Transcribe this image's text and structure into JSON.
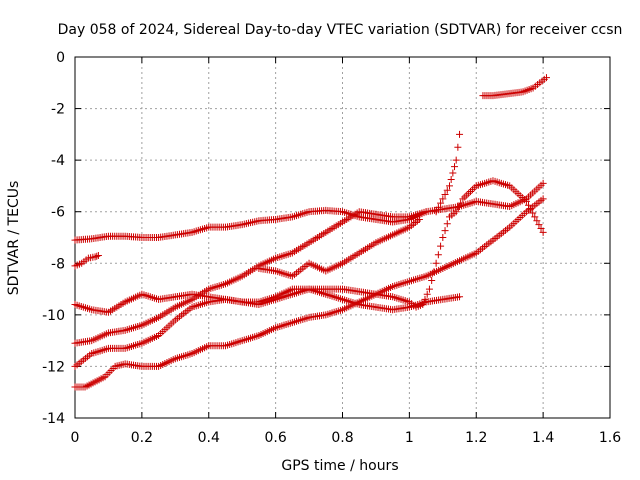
{
  "chart_data": {
    "type": "scatter",
    "title": "Day 058 of 2024, Sidereal Day-to-day VTEC variation (SDTVAR) for receiver ccsn",
    "xlabel": "GPS time / hours",
    "ylabel": "SDTVAR / TECUs",
    "xlim": [
      0,
      1.6
    ],
    "ylim": [
      -14,
      0
    ],
    "xticks": [
      0,
      0.2,
      0.4,
      0.6,
      0.8,
      1,
      1.2,
      1.4,
      1.6
    ],
    "xtick_labels": [
      "0",
      "0.2",
      "0.4",
      "0.6",
      "0.8",
      "1",
      "1.2",
      "1.4",
      "1.6"
    ],
    "yticks": [
      0,
      -2,
      -4,
      -6,
      -8,
      -10,
      -12,
      -14
    ],
    "ytick_labels": [
      "0",
      "-2",
      "-4",
      "-6",
      "-8",
      "-10",
      "-12",
      "-14"
    ],
    "grid": true,
    "marker": "+",
    "marker_color": "#cc0000",
    "series": [
      {
        "name": "s1",
        "x": [
          0,
          0.05,
          0.1,
          0.15,
          0.2,
          0.25,
          0.3,
          0.35,
          0.4,
          0.45,
          0.5,
          0.55,
          0.6,
          0.65,
          0.7,
          0.75,
          0.8,
          0.85,
          0.9,
          0.95,
          1.0,
          1.05
        ],
        "y": [
          -7.1,
          -7.05,
          -6.95,
          -6.95,
          -7.0,
          -7.0,
          -6.9,
          -6.8,
          -6.6,
          -6.6,
          -6.5,
          -6.35,
          -6.3,
          -6.2,
          -6.0,
          -5.95,
          -6.0,
          -6.2,
          -6.3,
          -6.4,
          -6.3,
          -6.0
        ]
      },
      {
        "name": "s2",
        "x": [
          0,
          0.02,
          0.04,
          0.06,
          0.07
        ],
        "y": [
          -8.1,
          -8.0,
          -7.8,
          -7.75,
          -7.7
        ]
      },
      {
        "name": "s3",
        "x": [
          0,
          0.05,
          0.1,
          0.15,
          0.2,
          0.25,
          0.3,
          0.35,
          0.4,
          0.45,
          0.5,
          0.55,
          0.6,
          0.65,
          0.7,
          0.75,
          0.8,
          0.85,
          0.9,
          0.95,
          1.0,
          1.02,
          1.04,
          1.06,
          1.08,
          1.1,
          1.12,
          1.14,
          1.16,
          1.2,
          1.25,
          1.3,
          1.35,
          1.4
        ],
        "y": [
          -9.6,
          -9.8,
          -9.9,
          -9.5,
          -9.2,
          -9.4,
          -9.3,
          -9.2,
          -9.3,
          -9.4,
          -9.5,
          -9.6,
          -9.4,
          -9.2,
          -9.0,
          -9.0,
          -9.0,
          -9.1,
          -9.2,
          -9.3,
          -9.5,
          -9.7,
          -9.6,
          -9.0,
          -8.0,
          -7.0,
          -6.2,
          -6.0,
          -5.5,
          -5.0,
          -4.8,
          -5.0,
          -5.6,
          -6.8
        ]
      },
      {
        "name": "s4",
        "x": [
          0,
          0.05,
          0.1,
          0.15,
          0.2,
          0.25,
          0.3,
          0.35,
          0.4,
          0.45,
          0.5,
          0.55,
          0.6,
          0.65,
          0.7,
          0.75,
          0.8,
          0.85,
          0.9,
          0.95,
          1.0,
          1.05,
          1.1,
          1.15,
          1.2,
          1.25,
          1.3,
          1.35,
          1.4
        ],
        "y": [
          -11.1,
          -11.0,
          -10.7,
          -10.6,
          -10.4,
          -10.1,
          -9.7,
          -9.4,
          -9.0,
          -8.8,
          -8.5,
          -8.1,
          -7.8,
          -7.6,
          -7.2,
          -6.8,
          -6.4,
          -6.0,
          -6.1,
          -6.2,
          -6.2,
          -6.0,
          -5.9,
          -5.8,
          -5.6,
          -5.7,
          -5.8,
          -5.5,
          -4.9
        ]
      },
      {
        "name": "s5",
        "x": [
          0,
          0.05,
          0.1,
          0.15,
          0.2,
          0.25,
          0.3,
          0.35,
          0.4,
          0.45,
          0.5,
          0.55,
          0.6,
          0.65,
          0.7,
          0.75,
          0.8,
          0.85,
          0.9,
          0.95,
          1.0,
          1.05,
          1.1,
          1.15
        ],
        "y": [
          -12.0,
          -11.5,
          -11.3,
          -11.3,
          -11.1,
          -10.8,
          -10.2,
          -9.7,
          -9.5,
          -9.4,
          -9.5,
          -9.5,
          -9.3,
          -9.0,
          -9.0,
          -9.2,
          -9.4,
          -9.6,
          -9.7,
          -9.8,
          -9.7,
          -9.5,
          -9.4,
          -9.3
        ]
      },
      {
        "name": "s6",
        "x": [
          0,
          0.03,
          0.06,
          0.09,
          0.12,
          0.15,
          0.2,
          0.25,
          0.3,
          0.35,
          0.4,
          0.45,
          0.5,
          0.55,
          0.6,
          0.65,
          0.7,
          0.75,
          0.8,
          0.85,
          0.9,
          0.95,
          1.0,
          1.05,
          1.1,
          1.15,
          1.2,
          1.25,
          1.3,
          1.35,
          1.4
        ],
        "y": [
          -12.8,
          -12.8,
          -12.6,
          -12.4,
          -12.0,
          -11.9,
          -12.0,
          -12.0,
          -11.7,
          -11.5,
          -11.2,
          -11.2,
          -11.0,
          -10.8,
          -10.5,
          -10.3,
          -10.1,
          -10.0,
          -9.8,
          -9.5,
          -9.2,
          -8.9,
          -8.7,
          -8.5,
          -8.2,
          -7.9,
          -7.6,
          -7.1,
          -6.6,
          -6.0,
          -5.5
        ]
      },
      {
        "name": "s7",
        "x": [
          0.55,
          0.6,
          0.65,
          0.7,
          0.75,
          0.8,
          0.85,
          0.9,
          0.95,
          1.0,
          1.03
        ],
        "y": [
          -8.2,
          -8.3,
          -8.5,
          -8.0,
          -8.3,
          -8.0,
          -7.6,
          -7.2,
          -6.9,
          -6.6,
          -6.3
        ]
      },
      {
        "name": "s8",
        "x": [
          1.08,
          1.1,
          1.12,
          1.13,
          1.14,
          1.15
        ],
        "y": [
          -6.0,
          -5.5,
          -5.0,
          -4.5,
          -4.0,
          -3.0
        ]
      },
      {
        "name": "s9",
        "x": [
          1.22,
          1.25,
          1.28,
          1.31,
          1.34,
          1.37,
          1.39,
          1.41
        ],
        "y": [
          -1.5,
          -1.5,
          -1.45,
          -1.4,
          -1.35,
          -1.2,
          -1.0,
          -0.8
        ]
      }
    ]
  }
}
